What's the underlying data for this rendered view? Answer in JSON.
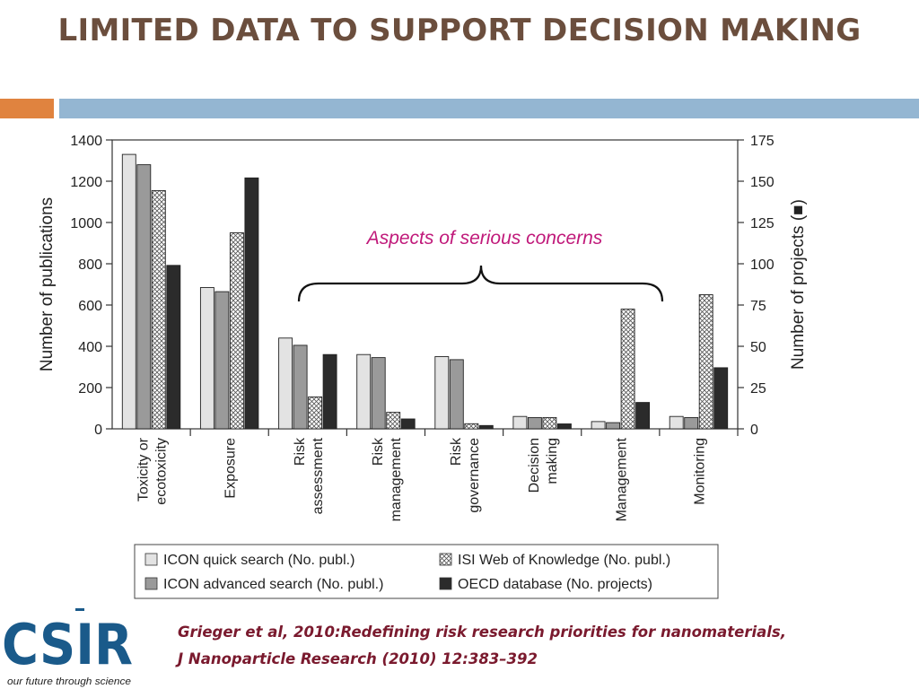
{
  "slide": {
    "title": "LIMITED DATA TO SUPPORT DECISION MAKING",
    "citation_line1": "Grieger et al, 2010:Redefining risk research priorities for nanomaterials,",
    "citation_line2": "J Nanoparticle Research (2010) 12:383–392",
    "logo_text": "CSIR",
    "logo_tagline": "our future through science"
  },
  "colors": {
    "title": "#6b4e3d",
    "accent_orange": "#e0833f",
    "accent_blue": "#94b6d2",
    "annotation": "#c0197a",
    "citation": "#7a1a2e",
    "logo": "#1a5a8a",
    "series_icon_quick": "#e3e3e3",
    "series_icon_advanced": "#9a9a9a",
    "series_isi": "hatched",
    "series_oecd": "#2b2b2b"
  },
  "chart_data": {
    "type": "bar",
    "categories": [
      [
        "Toxicity or",
        "ecotoxicity"
      ],
      [
        "Exposure"
      ],
      [
        "Risk",
        "assessment"
      ],
      [
        "Risk",
        "management"
      ],
      [
        "Risk",
        "governance"
      ],
      [
        "Decision",
        "making"
      ],
      [
        "Management"
      ],
      [
        "Monitoring"
      ]
    ],
    "series": [
      {
        "name": "ICON quick search (No. publ.)",
        "axis": "left",
        "values": [
          1330,
          685,
          440,
          360,
          350,
          60,
          35,
          60
        ]
      },
      {
        "name": "ICON advanced search (No. publ.)",
        "axis": "left",
        "values": [
          1280,
          665,
          405,
          345,
          335,
          55,
          30,
          55
        ]
      },
      {
        "name": "ISI Web of Knowledge (No. publ.)",
        "axis": "left",
        "values": [
          1155,
          950,
          155,
          80,
          25,
          55,
          580,
          650
        ]
      },
      {
        "name": "OECD database (No. projects)",
        "axis": "right",
        "values": [
          99,
          152,
          45,
          6,
          2,
          3,
          16,
          37
        ]
      }
    ],
    "ylabel": "Number of publications",
    "ylabel_right": "Number of projects (■)",
    "ylim": [
      0,
      1400
    ],
    "yticks": [
      0,
      200,
      400,
      600,
      800,
      1000,
      1200,
      1400
    ],
    "ylim_right": [
      0,
      175
    ],
    "yticks_right": [
      0,
      25,
      50,
      75,
      100,
      125,
      150,
      175
    ],
    "annotation": "Aspects of serious concerns",
    "annotation_span": [
      "Risk assessment",
      "Management"
    ],
    "grid": false,
    "legend_position": "bottom"
  }
}
